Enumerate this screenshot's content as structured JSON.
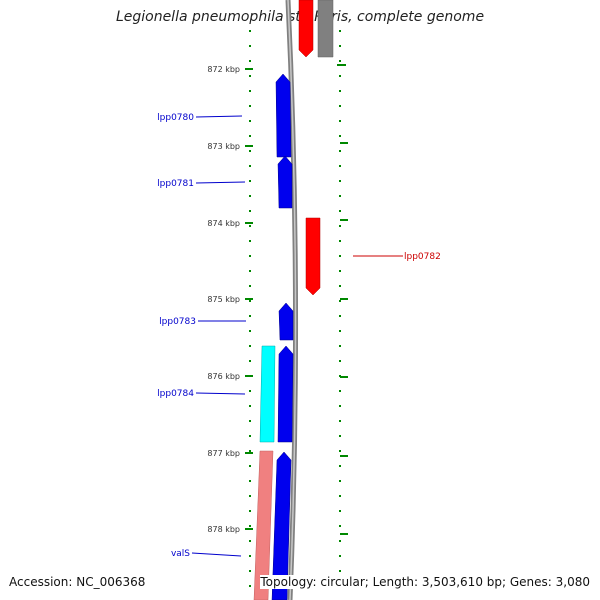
{
  "title": "Legionella pneumophila str. Paris, complete genome",
  "footer": {
    "accession": "Accession: NC_006368",
    "summary": "Topology: circular; Length: 3,503,610 bp; Genes: 3,080"
  },
  "ticks": [
    "872 kbp",
    "873 kbp",
    "874 kbp",
    "875 kbp",
    "876 kbp",
    "877 kbp",
    "878 kbp"
  ],
  "genes": [
    {
      "label": "lpp0780",
      "color": "#0000cc"
    },
    {
      "label": "lpp0781",
      "color": "#0000cc"
    },
    {
      "label": "lpp0782",
      "color": "#cc0000"
    },
    {
      "label": "lpp0783",
      "color": "#0000cc"
    },
    {
      "label": "lpp0784",
      "color": "#0000cc"
    },
    {
      "label": "valS",
      "color": "#0000cc"
    }
  ],
  "colors": {
    "forward_cds": "#0000ee",
    "reverse_cds": "#ff0000",
    "rna": "#00ffff",
    "other_forward": "#f08080",
    "other_reverse": "#808080",
    "backbone": "#808080",
    "tick": "#008800"
  }
}
